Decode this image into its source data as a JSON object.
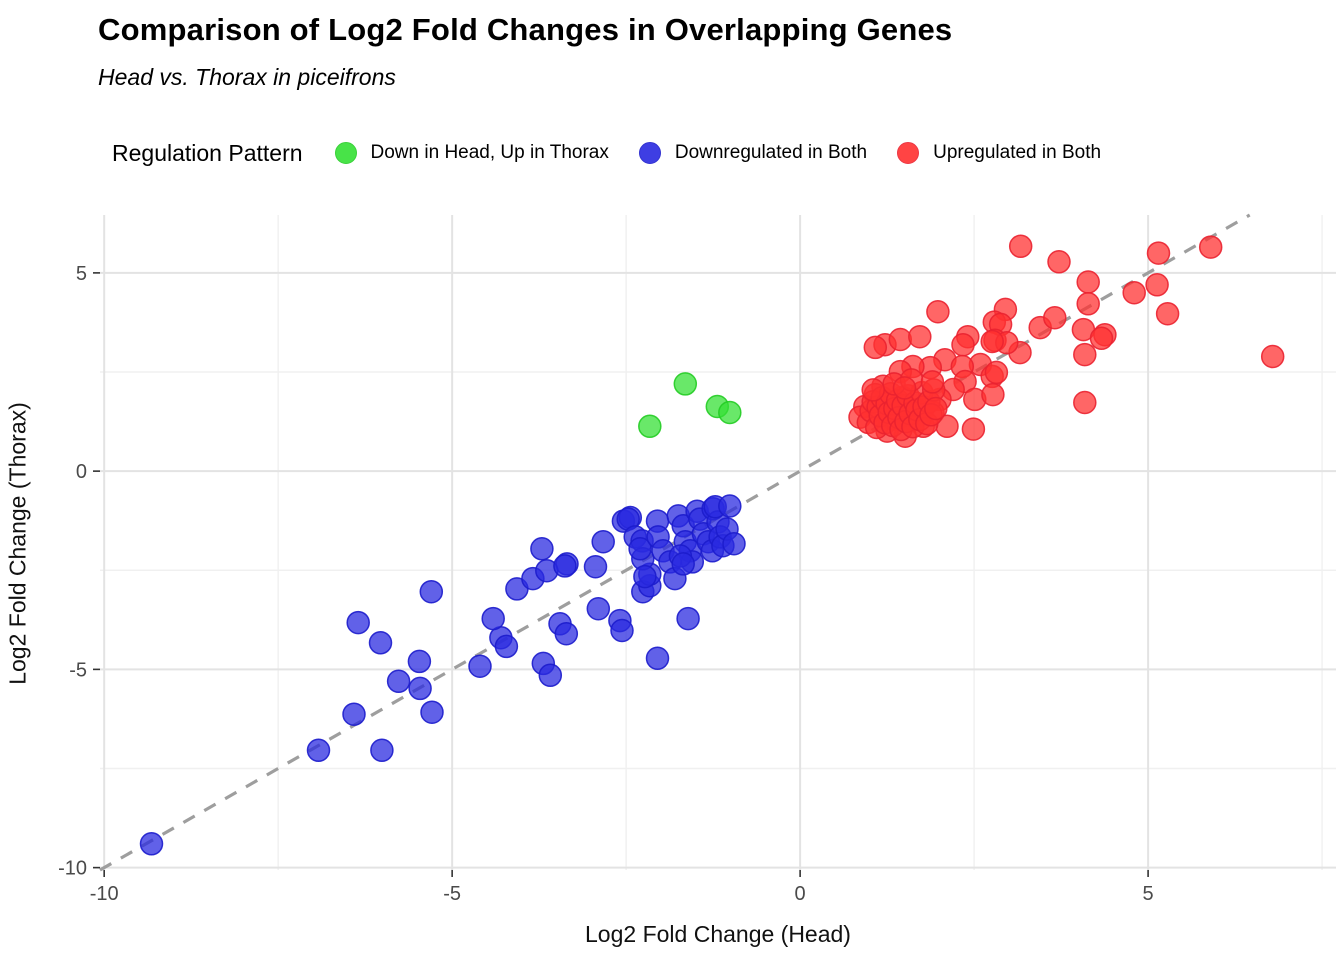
{
  "chart_data": {
    "type": "scatter",
    "title": "Comparison of Log2 Fold Changes in Overlapping Genes",
    "subtitle": "Head vs. Thorax in piceifrons",
    "xlabel": "Log2 Fold Change (Head)",
    "ylabel": "Log2 Fold Change (Thorax)",
    "legend_title": "Regulation Pattern",
    "legend_position": "top",
    "grid": "on",
    "background": "#ffffff",
    "major_grid_color": "#e3e3e3",
    "minor_grid_color": "#f0f0f0",
    "tick_color": "#333333",
    "tick_label_color": "#4a4a4a",
    "xlim": [
      -10.06,
      7.7
    ],
    "ylim": [
      -10.06,
      6.46
    ],
    "x_ticks": [
      -10,
      -5,
      0,
      5
    ],
    "y_ticks": [
      -10,
      -5,
      0,
      5
    ],
    "x_minor_ticks": [
      -7.5,
      -2.5,
      2.5,
      7.5
    ],
    "y_minor_ticks": [
      -7.5,
      -2.5,
      2.5
    ],
    "identity_line": {
      "label": "y = x",
      "color": "#9e9e9e",
      "dashed": true
    },
    "point_radius": 11,
    "point_fill_opacity": 0.74,
    "series": [
      {
        "name": "Down in Head, Up in Thorax",
        "color": "#35e035",
        "stroke": "#24cc24",
        "points": [
          [
            -1.65,
            2.2
          ],
          [
            -1.19,
            1.63
          ],
          [
            -1.01,
            1.48
          ],
          [
            -2.16,
            1.13
          ]
        ]
      },
      {
        "name": "Downregulated in Both",
        "color": "#2a2ae0",
        "stroke": "#1c1ccc",
        "points": [
          [
            -9.32,
            -9.4
          ],
          [
            -6.92,
            -7.04
          ],
          [
            -6.01,
            -7.04
          ],
          [
            -6.41,
            -6.13
          ],
          [
            -5.29,
            -6.08
          ],
          [
            -5.77,
            -5.3
          ],
          [
            -5.46,
            -5.48
          ],
          [
            -5.47,
            -4.8
          ],
          [
            -6.03,
            -4.33
          ],
          [
            -6.35,
            -3.82
          ],
          [
            -5.3,
            -3.04
          ],
          [
            -4.6,
            -4.92
          ],
          [
            -4.3,
            -4.2
          ],
          [
            -4.22,
            -4.42
          ],
          [
            -4.41,
            -3.72
          ],
          [
            -4.07,
            -2.97
          ],
          [
            -3.84,
            -2.71
          ],
          [
            -3.69,
            -4.85
          ],
          [
            -3.59,
            -5.15
          ],
          [
            -3.45,
            -3.85
          ],
          [
            -3.36,
            -4.1
          ],
          [
            -2.9,
            -3.47
          ],
          [
            -2.59,
            -3.77
          ],
          [
            -2.56,
            -4.02
          ],
          [
            -2.05,
            -4.72
          ],
          [
            -1.61,
            -3.72
          ],
          [
            -2.26,
            -3.04
          ],
          [
            -2.16,
            -2.89
          ],
          [
            -2.16,
            -2.6
          ],
          [
            -3.35,
            -2.34
          ],
          [
            -2.94,
            -2.41
          ],
          [
            -3.71,
            -1.96
          ],
          [
            -3.64,
            -2.51
          ],
          [
            -3.38,
            -2.39
          ],
          [
            -2.83,
            -1.78
          ],
          [
            -2.54,
            -1.26
          ],
          [
            -2.44,
            -1.17
          ],
          [
            -2.47,
            -1.21
          ],
          [
            -2.37,
            -1.66
          ],
          [
            -2.27,
            -1.76
          ],
          [
            -2.26,
            -2.21
          ],
          [
            -2.23,
            -2.66
          ],
          [
            -2.3,
            -1.96
          ],
          [
            -2.05,
            -1.26
          ],
          [
            -2.04,
            -1.66
          ],
          [
            -1.97,
            -2.01
          ],
          [
            -1.87,
            -2.29
          ],
          [
            -1.8,
            -2.71
          ],
          [
            -1.75,
            -1.13
          ],
          [
            -1.68,
            -1.38
          ],
          [
            -1.65,
            -1.78
          ],
          [
            -1.58,
            -2.01
          ],
          [
            -1.55,
            -2.29
          ],
          [
            -1.48,
            -1.01
          ],
          [
            -1.44,
            -1.21
          ],
          [
            -1.39,
            -1.58
          ],
          [
            -1.32,
            -1.78
          ],
          [
            -1.26,
            -2.01
          ],
          [
            -1.25,
            -0.95
          ],
          [
            -1.18,
            -1.28
          ],
          [
            -1.15,
            -1.66
          ],
          [
            -1.11,
            -1.88
          ],
          [
            -1.05,
            -1.46
          ],
          [
            -1.22,
            -0.9
          ],
          [
            -1.01,
            -0.88
          ],
          [
            -0.95,
            -1.83
          ],
          [
            -1.72,
            -2.14
          ],
          [
            -1.68,
            -2.34
          ]
        ]
      },
      {
        "name": "Upregulated in Both",
        "color": "#ff3030",
        "stroke": "#ea2230",
        "points": [
          [
            3.17,
            5.67
          ],
          [
            3.72,
            5.28
          ],
          [
            4.14,
            4.77
          ],
          [
            5.15,
            5.5
          ],
          [
            5.9,
            5.65
          ],
          [
            4.8,
            4.5
          ],
          [
            5.13,
            4.7
          ],
          [
            4.14,
            4.22
          ],
          [
            2.95,
            4.08
          ],
          [
            2.79,
            3.76
          ],
          [
            2.88,
            3.7
          ],
          [
            2.8,
            3.3
          ],
          [
            3.45,
            3.62
          ],
          [
            3.66,
            3.87
          ],
          [
            4.07,
            3.57
          ],
          [
            4.38,
            3.44
          ],
          [
            4.33,
            3.35
          ],
          [
            5.28,
            3.97
          ],
          [
            4.09,
            2.94
          ],
          [
            3.16,
            2.99
          ],
          [
            6.79,
            2.89
          ],
          [
            4.09,
            1.73
          ],
          [
            1.98,
            4.02
          ],
          [
            1.22,
            3.19
          ],
          [
            1.08,
            3.12
          ],
          [
            1.44,
            3.32
          ],
          [
            1.72,
            3.39
          ],
          [
            2.41,
            3.39
          ],
          [
            2.34,
            3.19
          ],
          [
            2.97,
            3.24
          ],
          [
            2.76,
            3.27
          ],
          [
            2.08,
            2.81
          ],
          [
            2.59,
            2.69
          ],
          [
            2.33,
            2.64
          ],
          [
            2.37,
            2.26
          ],
          [
            2.2,
            2.06
          ],
          [
            2.01,
            1.81
          ],
          [
            1.91,
            1.48
          ],
          [
            1.87,
            2.61
          ],
          [
            1.62,
            2.64
          ],
          [
            1.44,
            2.51
          ],
          [
            2.76,
            2.39
          ],
          [
            2.82,
            2.49
          ],
          [
            2.51,
            1.81
          ],
          [
            2.77,
            1.93
          ],
          [
            2.49,
            1.06
          ],
          [
            2.11,
            1.13
          ],
          [
            1.77,
            1.13
          ],
          [
            1.51,
            0.88
          ],
          [
            1.47,
            1.86
          ],
          [
            1.54,
            1.56
          ],
          [
            1.34,
            1.31
          ],
          [
            1.25,
            1.01
          ],
          [
            1.19,
            2.14
          ],
          [
            1.08,
            1.93
          ],
          [
            0.93,
            1.63
          ],
          [
            0.86,
            1.36
          ],
          [
            0.98,
            1.23
          ],
          [
            1.02,
            1.52
          ],
          [
            1.05,
            1.75
          ],
          [
            1.1,
            1.1
          ],
          [
            1.12,
            1.62
          ],
          [
            1.15,
            1.4
          ],
          [
            1.18,
            1.85
          ],
          [
            1.22,
            1.22
          ],
          [
            1.25,
            1.7
          ],
          [
            1.28,
            1.48
          ],
          [
            1.3,
            1.95
          ],
          [
            1.33,
            1.15
          ],
          [
            1.36,
            1.58
          ],
          [
            1.4,
            1.78
          ],
          [
            1.42,
            1.35
          ],
          [
            1.45,
            1.05
          ],
          [
            1.48,
            1.65
          ],
          [
            1.52,
            1.25
          ],
          [
            1.55,
            1.9
          ],
          [
            1.58,
            1.45
          ],
          [
            1.62,
            1.12
          ],
          [
            1.65,
            1.72
          ],
          [
            1.68,
            1.55
          ],
          [
            1.72,
            1.3
          ],
          [
            1.75,
            1.98
          ],
          [
            1.78,
            1.62
          ],
          [
            1.82,
            1.2
          ],
          [
            1.85,
            1.75
          ],
          [
            1.88,
            1.42
          ],
          [
            1.92,
            2.05
          ],
          [
            1.95,
            1.58
          ],
          [
            1.35,
            2.2
          ],
          [
            1.6,
            2.3
          ],
          [
            1.05,
            2.05
          ],
          [
            1.5,
            2.1
          ],
          [
            1.9,
            2.25
          ]
        ]
      }
    ]
  }
}
